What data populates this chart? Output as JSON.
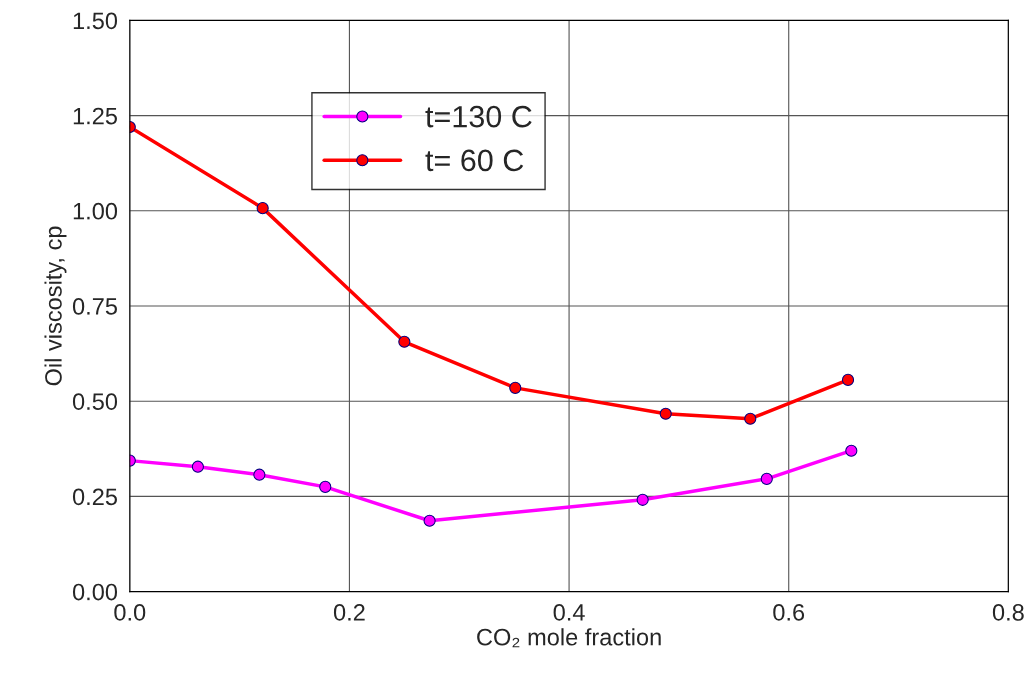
{
  "chart_data": {
    "type": "line",
    "xlabel": "CO₂ mole fraction",
    "ylabel": "Oil viscosity, cp",
    "series": [
      {
        "name": "t=130 C",
        "color": "#ff00ff",
        "x": [
          0.0,
          0.062,
          0.118,
          0.178,
          0.273,
          0.467,
          0.58,
          0.657
        ],
        "values": [
          0.344,
          0.328,
          0.307,
          0.275,
          0.186,
          0.241,
          0.296,
          0.37
        ]
      },
      {
        "name": "t= 60 C",
        "color": "#ff0000",
        "x": [
          0.0,
          0.121,
          0.25,
          0.351,
          0.488,
          0.565,
          0.654
        ],
        "values": [
          1.22,
          1.007,
          0.656,
          0.535,
          0.467,
          0.454,
          0.556
        ]
      }
    ],
    "xlim": [
      0,
      0.8
    ],
    "xticks": [
      {
        "value": 0,
        "label": "0.0"
      },
      0.2,
      0.4,
      0.6,
      0.8
    ],
    "ylim": [
      0,
      1.5
    ],
    "yticks": [
      {
        "value": 0,
        "label": "0.00"
      },
      0.25,
      {
        "value": 0.5,
        "label": "0.50"
      },
      {
        "value": 0.75,
        "label": "0.75"
      },
      {
        "value": 1,
        "label": "1.00"
      },
      1.25,
      {
        "value": 1.5,
        "label": "1.50"
      }
    ],
    "grid": true,
    "legend": "top",
    "marker": "circle",
    "line_style": "solid"
  }
}
